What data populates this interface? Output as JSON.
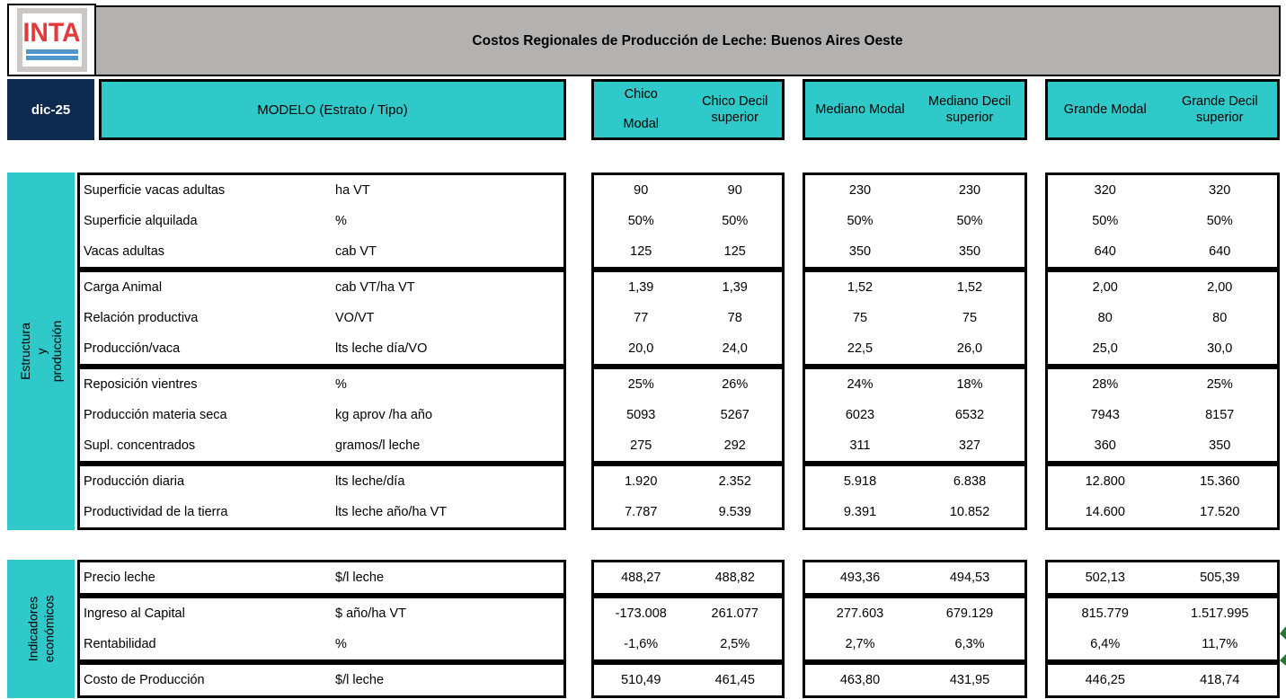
{
  "logo": {
    "text": "INTA"
  },
  "title": "Costos Regionales de Producción de Leche: Buenos Aires Oeste",
  "date_badge": "dic-25",
  "model_header": "MODELO (Estrato / Tipo)",
  "groups": [
    {
      "name": "chico",
      "cols": [
        "Chico\nModal",
        "Chico Decil superior"
      ]
    },
    {
      "name": "mediano",
      "cols": [
        "Mediano Modal",
        "Mediano Decil superior"
      ]
    },
    {
      "name": "grande",
      "cols": [
        "Grande Modal",
        "Grande Decil superior"
      ]
    }
  ],
  "sections": [
    {
      "name": "Estructura y producción",
      "row_groups": [
        {
          "rows": [
            {
              "label": "Superficie vacas adultas",
              "unit": "ha VT",
              "values": [
                "90",
                "90",
                "230",
                "230",
                "320",
                "320"
              ]
            },
            {
              "label": "Superficie alquilada",
              "unit": "%",
              "values": [
                "50%",
                "50%",
                "50%",
                "50%",
                "50%",
                "50%"
              ]
            },
            {
              "label": "Vacas adultas",
              "unit": "cab VT",
              "values": [
                "125",
                "125",
                "350",
                "350",
                "640",
                "640"
              ]
            }
          ]
        },
        {
          "rows": [
            {
              "label": "Carga Animal",
              "unit": "cab VT/ha VT",
              "values": [
                "1,39",
                "1,39",
                "1,52",
                "1,52",
                "2,00",
                "2,00"
              ]
            },
            {
              "label": "Relación productiva",
              "unit": "VO/VT",
              "values": [
                "77",
                "78",
                "75",
                "75",
                "80",
                "80"
              ]
            },
            {
              "label": "Producción/vaca",
              "unit": "lts leche día/VO",
              "values": [
                "20,0",
                "24,0",
                "22,5",
                "26,0",
                "25,0",
                "30,0"
              ]
            }
          ]
        },
        {
          "rows": [
            {
              "label": "Reposición vientres",
              "unit": "%",
              "values": [
                "25%",
                "26%",
                "24%",
                "18%",
                "28%",
                "25%"
              ]
            },
            {
              "label": "Producción materia seca",
              "unit": "kg aprov /ha año",
              "values": [
                "5093",
                "5267",
                "6023",
                "6532",
                "7943",
                "8157"
              ]
            },
            {
              "label": "Supl. concentrados",
              "unit": "gramos/l leche",
              "values": [
                "275",
                "292",
                "311",
                "327",
                "360",
                "350"
              ]
            }
          ]
        },
        {
          "rows": [
            {
              "label": "Producción diaria",
              "unit": "lts leche/día",
              "values": [
                "1.920",
                "2.352",
                "5.918",
                "6.838",
                "12.800",
                "15.360"
              ]
            },
            {
              "label": "Productividad de la tierra",
              "unit": "lts leche año/ha VT",
              "values": [
                "7.787",
                "9.539",
                "9.391",
                "10.852",
                "14.600",
                "17.520"
              ]
            }
          ]
        }
      ]
    },
    {
      "name": "Indicadores\neconómicos",
      "row_groups": [
        {
          "rows": [
            {
              "label": "Precio leche",
              "unit": "$/l leche",
              "values": [
                "488,27",
                "488,82",
                "493,36",
                "494,53",
                "502,13",
                "505,39"
              ]
            }
          ]
        },
        {
          "rows": [
            {
              "label": "Ingreso al Capital",
              "unit": "$ año/ha VT",
              "values": [
                "-173.008",
                "261.077",
                "277.603",
                "679.129",
                "815.779",
                "1.517.995"
              ]
            },
            {
              "label": "Rentabilidad",
              "unit": "%",
              "values": [
                "-1,6%",
                "2,5%",
                "2,7%",
                "6,3%",
                "6,4%",
                "11,7%"
              ]
            }
          ]
        },
        {
          "rows": [
            {
              "label": "Costo de Producción",
              "unit": "$/l leche",
              "values": [
                "510,49",
                "461,45",
                "463,80",
                "431,95",
                "446,25",
                "418,74"
              ]
            }
          ]
        }
      ]
    }
  ],
  "colors": {
    "teal": "#2fc9c9",
    "navy": "#0e2a4e",
    "title_gray": "#b4b1b1",
    "logo_red": "#e03a3c",
    "logo_blue": "#4e97ce",
    "edge_marker_green": "#1f7a2f"
  }
}
